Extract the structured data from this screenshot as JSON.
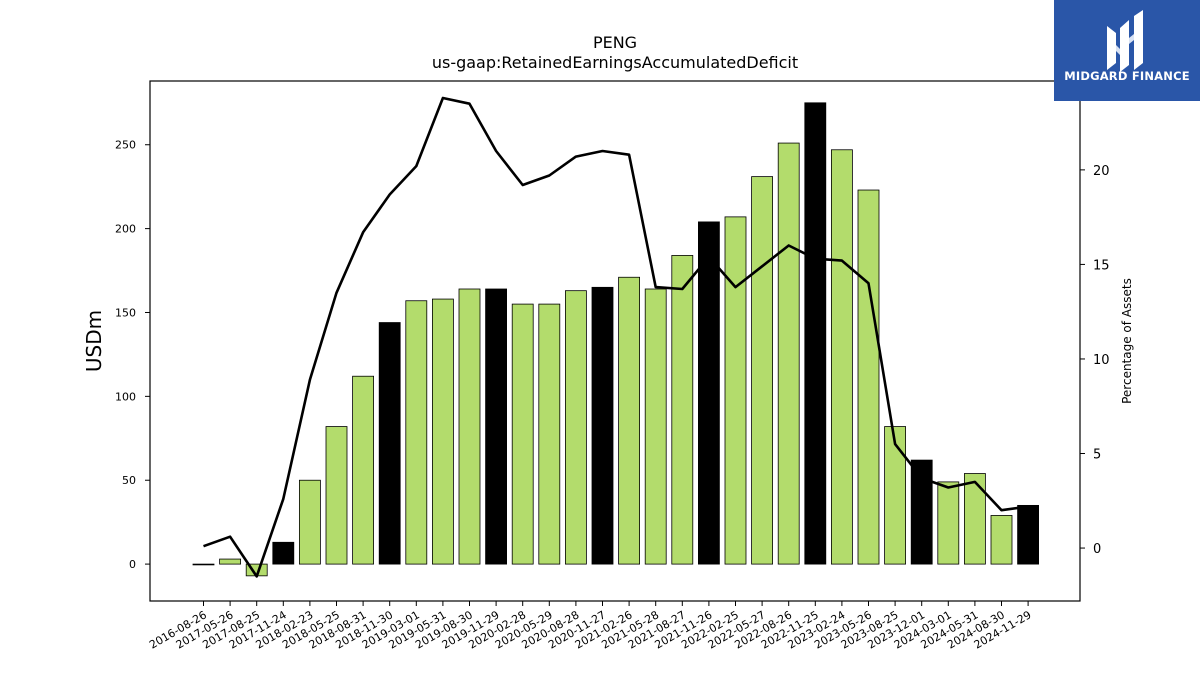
{
  "chart_data": {
    "type": "bar",
    "title": "PENG",
    "subtitle": "us-gaap:RetainedEarningsAccumulatedDeficit",
    "ylabel": "USDm",
    "y2label": "Percentage of Assets",
    "ylim": [
      -22,
      288
    ],
    "y2lim": [
      -2.8,
      24.7
    ],
    "yticks": [
      0,
      50,
      100,
      150,
      200,
      250
    ],
    "y2ticks": [
      0,
      5,
      10,
      15,
      20
    ],
    "grid": false,
    "categories": [
      "2016-08-26",
      "2017-05-26",
      "2017-08-25",
      "2017-11-24",
      "2018-02-23",
      "2018-05-25",
      "2018-08-31",
      "2018-11-30",
      "2019-03-01",
      "2019-05-31",
      "2019-08-30",
      "2019-11-29",
      "2020-02-28",
      "2020-05-29",
      "2020-08-28",
      "2020-11-27",
      "2021-02-26",
      "2021-05-28",
      "2021-08-27",
      "2021-11-26",
      "2022-02-25",
      "2022-05-27",
      "2022-08-26",
      "2022-11-25",
      "2023-02-24",
      "2023-05-26",
      "2023-08-25",
      "2023-12-01",
      "2024-03-01",
      "2024-05-31",
      "2024-08-30",
      "2024-11-29"
    ],
    "series": [
      {
        "kind": "bar",
        "values": [
          0,
          3,
          -7,
          13,
          50,
          82,
          112,
          144,
          157,
          158,
          164,
          164,
          155,
          155,
          163,
          165,
          171,
          164,
          184,
          204,
          207,
          231,
          251,
          275,
          247,
          223,
          82,
          62,
          49,
          54,
          29,
          35
        ],
        "colors": [
          "#b3dc6c",
          "#b3dc6c",
          "#b3dc6c",
          "#000000",
          "#b3dc6c",
          "#b3dc6c",
          "#b3dc6c",
          "#000000",
          "#b3dc6c",
          "#b3dc6c",
          "#b3dc6c",
          "#000000",
          "#b3dc6c",
          "#b3dc6c",
          "#b3dc6c",
          "#000000",
          "#b3dc6c",
          "#b3dc6c",
          "#b3dc6c",
          "#000000",
          "#b3dc6c",
          "#b3dc6c",
          "#b3dc6c",
          "#000000",
          "#b3dc6c",
          "#b3dc6c",
          "#b3dc6c",
          "#000000",
          "#b3dc6c",
          "#b3dc6c",
          "#b3dc6c",
          "#000000"
        ]
      },
      {
        "kind": "line",
        "axis": "right",
        "color": "#000000",
        "values": [
          0.1,
          0.6,
          -1.5,
          2.6,
          8.9,
          13.5,
          16.7,
          18.7,
          20.2,
          23.8,
          23.5,
          21.0,
          19.2,
          19.7,
          20.7,
          21.0,
          20.8,
          13.8,
          13.7,
          15.4,
          13.8,
          14.9,
          16.0,
          15.3,
          15.2,
          14.0,
          5.5,
          3.7,
          3.2,
          3.5,
          2.0,
          2.2
        ]
      }
    ]
  },
  "logo": {
    "text": "MIDGARD FINANCE",
    "bg_color": "#2a56a8"
  }
}
